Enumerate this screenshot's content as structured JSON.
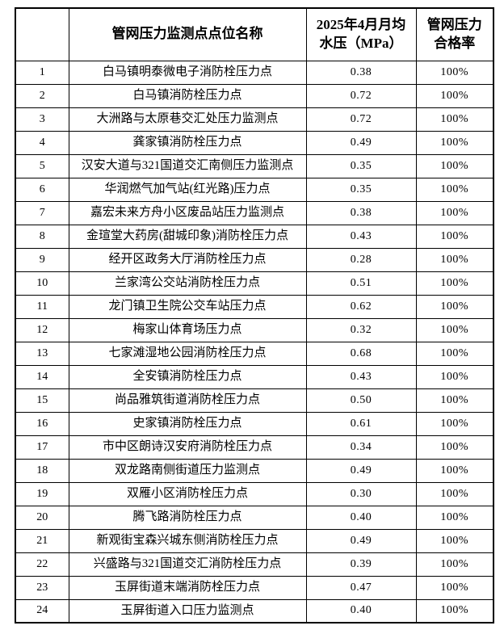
{
  "table": {
    "columns": [
      {
        "label": ""
      },
      {
        "label": "管网压力监测点点位名称"
      },
      {
        "label": "2025年4月月均\n水压（MPa）"
      },
      {
        "label": "管网压力\n合格率"
      }
    ],
    "rows": [
      {
        "no": "1",
        "name": "白马镇明泰微电子消防栓压力点",
        "pressure": "0.38",
        "rate": "100%"
      },
      {
        "no": "2",
        "name": "白马镇消防栓压力点",
        "pressure": "0.72",
        "rate": "100%"
      },
      {
        "no": "3",
        "name": "大洲路与太原巷交汇处压力监测点",
        "pressure": "0.72",
        "rate": "100%"
      },
      {
        "no": "4",
        "name": "龚家镇消防栓压力点",
        "pressure": "0.49",
        "rate": "100%"
      },
      {
        "no": "5",
        "name": "汉安大道与321国道交汇南侧压力监测点",
        "pressure": "0.35",
        "rate": "100%"
      },
      {
        "no": "6",
        "name": "华润燃气加气站(红光路)压力点",
        "pressure": "0.35",
        "rate": "100%"
      },
      {
        "no": "7",
        "name": "嘉宏未来方舟小区废品站压力监测点",
        "pressure": "0.38",
        "rate": "100%"
      },
      {
        "no": "8",
        "name": "金瑄堂大药房(甜城印象)消防栓压力点",
        "pressure": "0.43",
        "rate": "100%"
      },
      {
        "no": "9",
        "name": "经开区政务大厅消防栓压力点",
        "pressure": "0.28",
        "rate": "100%"
      },
      {
        "no": "10",
        "name": "兰家湾公交站消防栓压力点",
        "pressure": "0.51",
        "rate": "100%"
      },
      {
        "no": "11",
        "name": "龙门镇卫生院公交车站压力点",
        "pressure": "0.62",
        "rate": "100%"
      },
      {
        "no": "12",
        "name": "梅家山体育场压力点",
        "pressure": "0.32",
        "rate": "100%"
      },
      {
        "no": "13",
        "name": "七家滩湿地公园消防栓压力点",
        "pressure": "0.68",
        "rate": "100%"
      },
      {
        "no": "14",
        "name": "全安镇消防栓压力点",
        "pressure": "0.43",
        "rate": "100%"
      },
      {
        "no": "15",
        "name": "尚品雅筑街道消防栓压力点",
        "pressure": "0.50",
        "rate": "100%"
      },
      {
        "no": "16",
        "name": "史家镇消防栓压力点",
        "pressure": "0.61",
        "rate": "100%"
      },
      {
        "no": "17",
        "name": "市中区朗诗汉安府消防栓压力点",
        "pressure": "0.34",
        "rate": "100%"
      },
      {
        "no": "18",
        "name": "双龙路南侧街道压力监测点",
        "pressure": "0.49",
        "rate": "100%"
      },
      {
        "no": "19",
        "name": "双雁小区消防栓压力点",
        "pressure": "0.30",
        "rate": "100%"
      },
      {
        "no": "20",
        "name": "腾飞路消防栓压力点",
        "pressure": "0.40",
        "rate": "100%"
      },
      {
        "no": "21",
        "name": "新观街宝森兴城东侧消防栓压力点",
        "pressure": "0.49",
        "rate": "100%"
      },
      {
        "no": "22",
        "name": "兴盛路与321国道交汇消防栓压力点",
        "pressure": "0.39",
        "rate": "100%"
      },
      {
        "no": "23",
        "name": "玉屏街道末端消防栓压力点",
        "pressure": "0.47",
        "rate": "100%"
      },
      {
        "no": "24",
        "name": "玉屏街道入口压力监测点",
        "pressure": "0.40",
        "rate": "100%"
      }
    ]
  },
  "colors": {
    "border": "#000000",
    "text": "#000000",
    "background": "#ffffff"
  }
}
